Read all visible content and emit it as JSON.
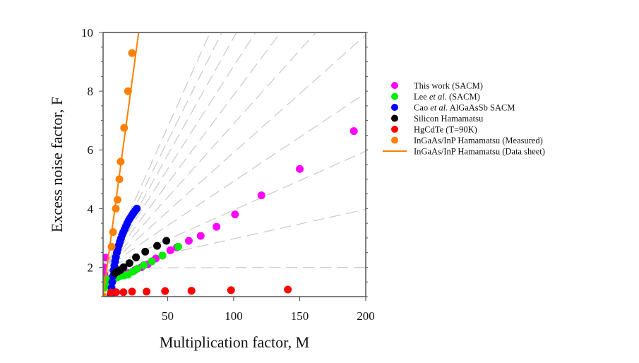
{
  "chart_data": {
    "type": "scatter",
    "title": "",
    "xlabel": "Multiplication factor, M",
    "ylabel": "Excess noise factor, F",
    "xlim": [
      0,
      200
    ],
    "ylim": [
      1,
      10
    ],
    "xticks": [
      50,
      100,
      150,
      200
    ],
    "xtick_labels": [
      "50",
      "100",
      "150",
      "200"
    ],
    "yticks": [
      2,
      4,
      6,
      8,
      10
    ],
    "ytick_labels": [
      "2",
      "4",
      "6",
      "8",
      "10"
    ],
    "grid": false,
    "legend_position": "right",
    "reference_lines": {
      "description": "McIntyre local-model k-lines: F = kM + (1-k)(2 - 1/M)",
      "style": "dashed",
      "color": "#cccccc",
      "k_values": [
        0,
        0.01,
        0.02,
        0.03,
        0.04,
        0.05,
        0.06,
        0.07,
        0.08,
        0.09,
        0.1
      ]
    },
    "series": [
      {
        "name": "This work (SACM)",
        "name_parts": [
          {
            "text": "This work (SACM)",
            "italic": false
          }
        ],
        "marker": "circle",
        "color": "#ff00ff",
        "x": [
          1.6,
          2.0,
          3.0,
          5,
          8,
          12,
          16,
          20,
          25,
          30,
          35,
          41,
          46,
          52,
          57,
          66,
          75,
          87,
          101,
          121,
          150,
          191
        ],
        "y": [
          2.0,
          1.75,
          2.33,
          1.6,
          1.65,
          1.7,
          1.75,
          1.8,
          1.9,
          2.0,
          2.1,
          2.3,
          2.4,
          2.58,
          2.68,
          2.9,
          3.07,
          3.38,
          3.8,
          4.45,
          5.35,
          6.64
        ]
      },
      {
        "name": "Lee et al. (SACM)",
        "name_parts": [
          {
            "text": "Lee ",
            "italic": false
          },
          {
            "text": "et al.",
            "italic": true
          },
          {
            "text": " (SACM)",
            "italic": false
          }
        ],
        "marker": "circle",
        "color": "#00ee00",
        "x": [
          2,
          2.5,
          3,
          4,
          6,
          8,
          10,
          12,
          14,
          17,
          20,
          23.5,
          27,
          32,
          38,
          46,
          58
        ],
        "y": [
          1.3,
          1.4,
          1.5,
          1.6,
          1.55,
          1.6,
          1.63,
          1.66,
          1.7,
          1.72,
          1.75,
          1.85,
          1.95,
          2.07,
          2.2,
          2.4,
          2.7
        ]
      },
      {
        "name": "Cao et al. AlGaAsSb SACM",
        "name_parts": [
          {
            "text": "Cao ",
            "italic": false
          },
          {
            "text": "et al.",
            "italic": true
          },
          {
            "text": " AlGaAsSb SACM",
            "italic": false
          }
        ],
        "marker": "circle",
        "color": "#0000ff",
        "x": [
          7,
          7.5,
          8,
          8.6,
          9,
          9.6,
          10.2,
          10.8,
          11.5,
          12.2,
          13,
          13.8,
          14.6,
          15.5,
          16.4,
          17.4,
          18.4,
          19.4,
          20.5,
          21.6,
          22.8,
          24,
          25.3,
          26.6
        ],
        "y": [
          1.07,
          1.3,
          1.5,
          1.7,
          1.9,
          2.05,
          2.2,
          2.35,
          2.5,
          2.62,
          2.75,
          2.87,
          2.98,
          3.1,
          3.2,
          3.3,
          3.4,
          3.5,
          3.6,
          3.68,
          3.76,
          3.84,
          3.92,
          4.0
        ]
      },
      {
        "name": "Silicon Hamamatsu",
        "name_parts": [
          {
            "text": "Silicon Hamamatsu",
            "italic": false
          }
        ],
        "marker": "circle",
        "color": "#000000",
        "x": [
          10,
          12,
          14,
          16.5,
          21,
          26,
          33,
          42,
          49
        ],
        "y": [
          1.8,
          1.85,
          1.9,
          2.0,
          2.14,
          2.34,
          2.53,
          2.73,
          2.9
        ]
      },
      {
        "name": "HgCdTe (T=90K)",
        "name_parts": [
          {
            "text": "HgCdTe (T=90K)",
            "italic": false
          }
        ],
        "marker": "circle",
        "color": "#ff0000",
        "x": [
          7,
          11,
          16.5,
          23,
          34,
          48,
          68,
          98,
          141
        ],
        "y": [
          1.14,
          1.15,
          1.15,
          1.17,
          1.17,
          1.19,
          1.2,
          1.22,
          1.24
        ]
      },
      {
        "name": "InGaAs/InP Hamamatsu (Measured)",
        "name_parts": [
          {
            "text": "InGaAs/InP Hamamatsu (Measured)",
            "italic": false
          }
        ],
        "marker": "circle",
        "color": "#ff8000",
        "x": [
          1.6,
          7.5,
          8.6,
          10.7,
          12,
          13.4,
          14.4,
          17,
          20,
          23
        ],
        "y": [
          1.0,
          2.7,
          3.2,
          4.0,
          4.3,
          5.0,
          5.6,
          6.75,
          8.0,
          9.3
        ]
      },
      {
        "name": "InGaAs/InP Hamamatsu (Data sheet)",
        "name_parts": [
          {
            "text": "InGaAs/InP Hamamatsu (Data sheet)",
            "italic": false
          }
        ],
        "marker": "line",
        "color": "#ff8000",
        "x": [
          1,
          28
        ],
        "y": [
          1.0,
          10.0
        ]
      }
    ]
  }
}
